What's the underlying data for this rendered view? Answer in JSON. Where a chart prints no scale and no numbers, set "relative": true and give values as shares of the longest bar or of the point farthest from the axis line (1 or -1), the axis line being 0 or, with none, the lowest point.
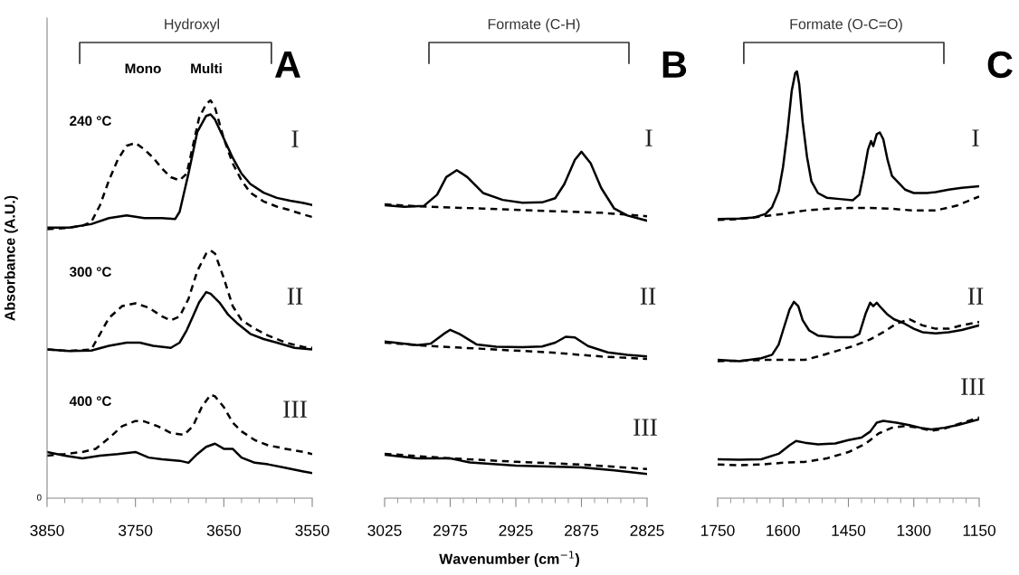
{
  "chart_data": [
    {
      "type": "line",
      "relative": true,
      "ylabel": "Absorbance (A.U.)",
      "xlim": [
        3850,
        3550
      ],
      "xticks": [
        3850,
        {
          "value": 3830,
          "label": null
        },
        {
          "value": 3810,
          "label": null
        },
        {
          "value": 3790,
          "label": null
        },
        {
          "value": 3770,
          "label": null
        },
        3750,
        {
          "value": 3730,
          "label": null
        },
        {
          "value": 3710,
          "label": null
        },
        {
          "value": 3690,
          "label": null
        },
        {
          "value": 3670,
          "label": null
        },
        3650,
        {
          "value": 3630,
          "label": null
        },
        {
          "value": 3610,
          "label": null
        },
        {
          "value": 3590,
          "label": null
        },
        {
          "value": 3570,
          "label": null
        },
        3550
      ],
      "annotations": [
        "Hydroxyl",
        "A",
        "Mono",
        "Multi",
        "240 °C",
        "300 °C",
        "400 °C",
        "I",
        "II",
        "III",
        "0"
      ],
      "series": [
        {
          "color": "#000000",
          "line_style": "solid",
          "x": [
            3850,
            3825,
            3800,
            3780,
            3760,
            3740,
            3720,
            3705,
            3700,
            3690,
            3680,
            3670,
            3665,
            3660,
            3650,
            3640,
            3630,
            3620,
            3605,
            3590,
            3575,
            3560,
            3550
          ],
          "values": [
            0.68,
            0.68,
            0.689,
            0.704,
            0.711,
            0.704,
            0.704,
            0.702,
            0.72,
            0.816,
            0.921,
            0.961,
            0.965,
            0.952,
            0.904,
            0.856,
            0.816,
            0.79,
            0.768,
            0.755,
            0.748,
            0.742,
            0.737
          ]
        },
        {
          "color": "#000000",
          "line_style": "dashed",
          "x": [
            3850,
            3825,
            3810,
            3800,
            3790,
            3780,
            3770,
            3760,
            3750,
            3740,
            3730,
            3720,
            3710,
            3700,
            3692,
            3685,
            3678,
            3670,
            3665,
            3660,
            3650,
            3640,
            3630,
            3620,
            3605,
            3590,
            3575,
            3560,
            3550
          ],
          "values": [
            0.676,
            0.68,
            0.685,
            0.694,
            0.737,
            0.799,
            0.851,
            0.886,
            0.893,
            0.877,
            0.856,
            0.829,
            0.807,
            0.799,
            0.816,
            0.886,
            0.956,
            0.991,
            1.0,
            0.982,
            0.904,
            0.842,
            0.799,
            0.768,
            0.746,
            0.733,
            0.724,
            0.713,
            0.707
          ]
        },
        {
          "color": "#000000",
          "line_style": "solid",
          "x": [
            3850,
            3825,
            3800,
            3780,
            3760,
            3745,
            3730,
            3710,
            3700,
            3692,
            3685,
            3678,
            3670,
            3665,
            3655,
            3645,
            3635,
            3620,
            3605,
            3590,
            3570,
            3550
          ],
          "values": [
            0.374,
            0.37,
            0.371,
            0.383,
            0.391,
            0.391,
            0.383,
            0.378,
            0.391,
            0.422,
            0.457,
            0.492,
            0.518,
            0.514,
            0.492,
            0.461,
            0.44,
            0.413,
            0.4,
            0.391,
            0.378,
            0.374
          ]
        },
        {
          "color": "#000000",
          "line_style": "dashed",
          "x": [
            3850,
            3825,
            3800,
            3790,
            3780,
            3765,
            3750,
            3735,
            3720,
            3710,
            3700,
            3690,
            3680,
            3670,
            3665,
            3660,
            3650,
            3640,
            3630,
            3615,
            3600,
            3580,
            3560,
            3550
          ],
          "values": [
            0.374,
            0.37,
            0.374,
            0.413,
            0.453,
            0.483,
            0.49,
            0.479,
            0.457,
            0.447,
            0.457,
            0.501,
            0.571,
            0.615,
            0.623,
            0.615,
            0.553,
            0.483,
            0.448,
            0.426,
            0.409,
            0.391,
            0.38,
            0.378
          ]
        },
        {
          "color": "#000000",
          "line_style": "solid",
          "x": [
            3850,
            3830,
            3810,
            3790,
            3770,
            3750,
            3735,
            3720,
            3700,
            3690,
            3680,
            3670,
            3660,
            3650,
            3640,
            3630,
            3615,
            3600,
            3580,
            3560,
            3550
          ],
          "values": [
            0.116,
            0.107,
            0.1,
            0.107,
            0.111,
            0.116,
            0.102,
            0.098,
            0.094,
            0.089,
            0.111,
            0.129,
            0.137,
            0.124,
            0.124,
            0.102,
            0.089,
            0.085,
            0.076,
            0.067,
            0.063
          ]
        },
        {
          "color": "#000000",
          "line_style": "dashed",
          "x": [
            3850,
            3830,
            3810,
            3795,
            3780,
            3765,
            3750,
            3740,
            3725,
            3710,
            3695,
            3685,
            3675,
            3665,
            3660,
            3650,
            3640,
            3630,
            3615,
            3600,
            3580,
            3560,
            3550
          ],
          "values": [
            0.107,
            0.111,
            0.116,
            0.124,
            0.151,
            0.181,
            0.194,
            0.193,
            0.181,
            0.164,
            0.159,
            0.181,
            0.229,
            0.26,
            0.256,
            0.229,
            0.19,
            0.168,
            0.146,
            0.133,
            0.124,
            0.116,
            0.111
          ]
        }
      ]
    },
    {
      "type": "line",
      "relative": true,
      "xlabel": "Wavenumber (cm$^{−1}$)",
      "xlim": [
        3025,
        2825
      ],
      "xticks": [
        3025,
        {
          "value": 3015,
          "label": null
        },
        {
          "value": 3005,
          "label": null
        },
        {
          "value": 2995,
          "label": null
        },
        {
          "value": 2985,
          "label": null
        },
        2975,
        {
          "value": 2965,
          "label": null
        },
        {
          "value": 2955,
          "label": null
        },
        {
          "value": 2945,
          "label": null
        },
        {
          "value": 2935,
          "label": null
        },
        2925,
        {
          "value": 2915,
          "label": null
        },
        {
          "value": 2905,
          "label": null
        },
        {
          "value": 2895,
          "label": null
        },
        {
          "value": 2885,
          "label": null
        },
        2875,
        {
          "value": 2865,
          "label": null
        },
        {
          "value": 2855,
          "label": null
        },
        {
          "value": 2845,
          "label": null
        },
        {
          "value": 2835,
          "label": null
        },
        2825
      ],
      "annotations": [
        "Formate (C-H)",
        "B",
        "I",
        "II",
        "III"
      ],
      "series": [
        {
          "color": "#000000",
          "line_style": "solid",
          "x": [
            3025,
            3010,
            2995,
            2985,
            2978,
            2970,
            2962,
            2950,
            2935,
            2920,
            2905,
            2895,
            2888,
            2880,
            2875,
            2868,
            2860,
            2850,
            2840,
            2825
          ],
          "values": [
            0.846,
            0.841,
            0.844,
            0.876,
            0.927,
            0.947,
            0.927,
            0.881,
            0.861,
            0.853,
            0.854,
            0.866,
            0.907,
            0.977,
            1.0,
            0.967,
            0.896,
            0.836,
            0.816,
            0.801
          ]
        },
        {
          "color": "#000000",
          "line_style": "dashed",
          "x": [
            3025,
            2990,
            2950,
            2900,
            2860,
            2825
          ],
          "values": [
            0.848,
            0.841,
            0.836,
            0.829,
            0.824,
            0.814
          ]
        },
        {
          "color": "#000000",
          "line_style": "solid",
          "x": [
            3025,
            3000,
            2990,
            2980,
            2975,
            2968,
            2955,
            2940,
            2920,
            2905,
            2895,
            2887,
            2880,
            2870,
            2855,
            2840,
            2825
          ],
          "values": [
            0.452,
            0.442,
            0.446,
            0.474,
            0.486,
            0.474,
            0.444,
            0.437,
            0.436,
            0.438,
            0.449,
            0.466,
            0.464,
            0.439,
            0.421,
            0.414,
            0.409
          ]
        },
        {
          "color": "#000000",
          "line_style": "dashed",
          "x": [
            3025,
            2990,
            2950,
            2900,
            2860,
            2825
          ],
          "values": [
            0.449,
            0.439,
            0.431,
            0.421,
            0.409,
            0.402
          ]
        },
        {
          "color": "#000000",
          "line_style": "solid",
          "x": [
            3025,
            3000,
            2975,
            2960,
            2925,
            2875,
            2850,
            2825
          ],
          "values": [
            0.125,
            0.115,
            0.115,
            0.103,
            0.094,
            0.089,
            0.08,
            0.07
          ]
        },
        {
          "color": "#000000",
          "line_style": "dashed",
          "x": [
            3025,
            2975,
            2925,
            2875,
            2825
          ],
          "values": [
            0.128,
            0.115,
            0.105,
            0.097,
            0.084
          ]
        }
      ]
    },
    {
      "type": "line",
      "relative": true,
      "xlim": [
        1750,
        1150
      ],
      "xticks": [
        1750,
        {
          "value": 1720,
          "label": null
        },
        {
          "value": 1690,
          "label": null
        },
        {
          "value": 1660,
          "label": null
        },
        {
          "value": 1630,
          "label": null
        },
        1600,
        {
          "value": 1570,
          "label": null
        },
        {
          "value": 1540,
          "label": null
        },
        {
          "value": 1510,
          "label": null
        },
        {
          "value": 1480,
          "label": null
        },
        1450,
        {
          "value": 1420,
          "label": null
        },
        {
          "value": 1390,
          "label": null
        },
        {
          "value": 1360,
          "label": null
        },
        {
          "value": 1330,
          "label": null
        },
        1300,
        {
          "value": 1270,
          "label": null
        },
        {
          "value": 1240,
          "label": null
        },
        {
          "value": 1210,
          "label": null
        },
        {
          "value": 1180,
          "label": null
        },
        1150
      ],
      "annotations": [
        "Formate (O-C=O)",
        "C",
        "I",
        "II",
        "III"
      ],
      "series": [
        {
          "color": "#000000",
          "line_style": "solid",
          "x": [
            1750,
            1700,
            1665,
            1640,
            1625,
            1610,
            1600,
            1590,
            1580,
            1572,
            1568,
            1563,
            1555,
            1545,
            1535,
            1520,
            1500,
            1470,
            1440,
            1425,
            1415,
            1405,
            1398,
            1393,
            1385,
            1378,
            1370,
            1360,
            1350,
            1335,
            1320,
            1300,
            1270,
            1250,
            1220,
            1190,
            1150
          ],
          "values": [
            0.654,
            0.655,
            0.658,
            0.666,
            0.682,
            0.719,
            0.776,
            0.857,
            0.955,
            0.996,
            1.0,
            0.971,
            0.882,
            0.8,
            0.743,
            0.715,
            0.704,
            0.701,
            0.698,
            0.711,
            0.76,
            0.817,
            0.837,
            0.825,
            0.853,
            0.857,
            0.841,
            0.792,
            0.755,
            0.739,
            0.723,
            0.715,
            0.715,
            0.717,
            0.723,
            0.727,
            0.731
          ]
        },
        {
          "color": "#000000",
          "line_style": "dashed",
          "x": [
            1750,
            1700,
            1650,
            1600,
            1550,
            1500,
            1450,
            1400,
            1350,
            1300,
            1250,
            1200,
            1150
          ],
          "values": [
            0.652,
            0.654,
            0.66,
            0.666,
            0.674,
            0.678,
            0.68,
            0.68,
            0.678,
            0.674,
            0.674,
            0.686,
            0.707
          ]
        },
        {
          "color": "#000000",
          "line_style": "solid",
          "x": [
            1750,
            1700,
            1650,
            1625,
            1610,
            1600,
            1585,
            1575,
            1565,
            1555,
            1540,
            1520,
            1480,
            1440,
            1425,
            1410,
            1400,
            1393,
            1385,
            1375,
            1360,
            1345,
            1325,
            1300,
            1280,
            1250,
            1220,
            1190,
            1150
          ],
          "values": [
            0.324,
            0.321,
            0.328,
            0.336,
            0.36,
            0.393,
            0.442,
            0.46,
            0.45,
            0.417,
            0.393,
            0.381,
            0.377,
            0.377,
            0.385,
            0.434,
            0.458,
            0.45,
            0.458,
            0.446,
            0.43,
            0.419,
            0.411,
            0.397,
            0.389,
            0.386,
            0.389,
            0.394,
            0.405
          ]
        },
        {
          "color": "#000000",
          "line_style": "dashed",
          "x": [
            1750,
            1700,
            1650,
            1600,
            1550,
            1520,
            1480,
            1440,
            1400,
            1370,
            1340,
            1310,
            1280,
            1250,
            1220,
            1190,
            1150
          ],
          "values": [
            0.321,
            0.322,
            0.324,
            0.324,
            0.324,
            0.332,
            0.344,
            0.356,
            0.372,
            0.389,
            0.409,
            0.419,
            0.405,
            0.397,
            0.397,
            0.405,
            0.413
          ]
        },
        {
          "color": "#000000",
          "line_style": "solid",
          "x": [
            1750,
            1700,
            1650,
            1610,
            1585,
            1570,
            1550,
            1520,
            1480,
            1450,
            1420,
            1400,
            1385,
            1370,
            1340,
            1310,
            1285,
            1260,
            1230,
            1200,
            1150
          ],
          "values": [
            0.091,
            0.09,
            0.091,
            0.104,
            0.124,
            0.134,
            0.13,
            0.126,
            0.128,
            0.136,
            0.142,
            0.156,
            0.177,
            0.181,
            0.177,
            0.171,
            0.165,
            0.161,
            0.165,
            0.171,
            0.185
          ]
        },
        {
          "color": "#000000",
          "line_style": "dashed",
          "x": [
            1750,
            1700,
            1650,
            1600,
            1550,
            1500,
            1450,
            1410,
            1380,
            1350,
            1320,
            1290,
            1260,
            1230,
            1200,
            1150
          ],
          "values": [
            0.079,
            0.077,
            0.079,
            0.083,
            0.085,
            0.093,
            0.108,
            0.128,
            0.152,
            0.165,
            0.169,
            0.165,
            0.158,
            0.163,
            0.173,
            0.189
          ]
        }
      ]
    }
  ]
}
